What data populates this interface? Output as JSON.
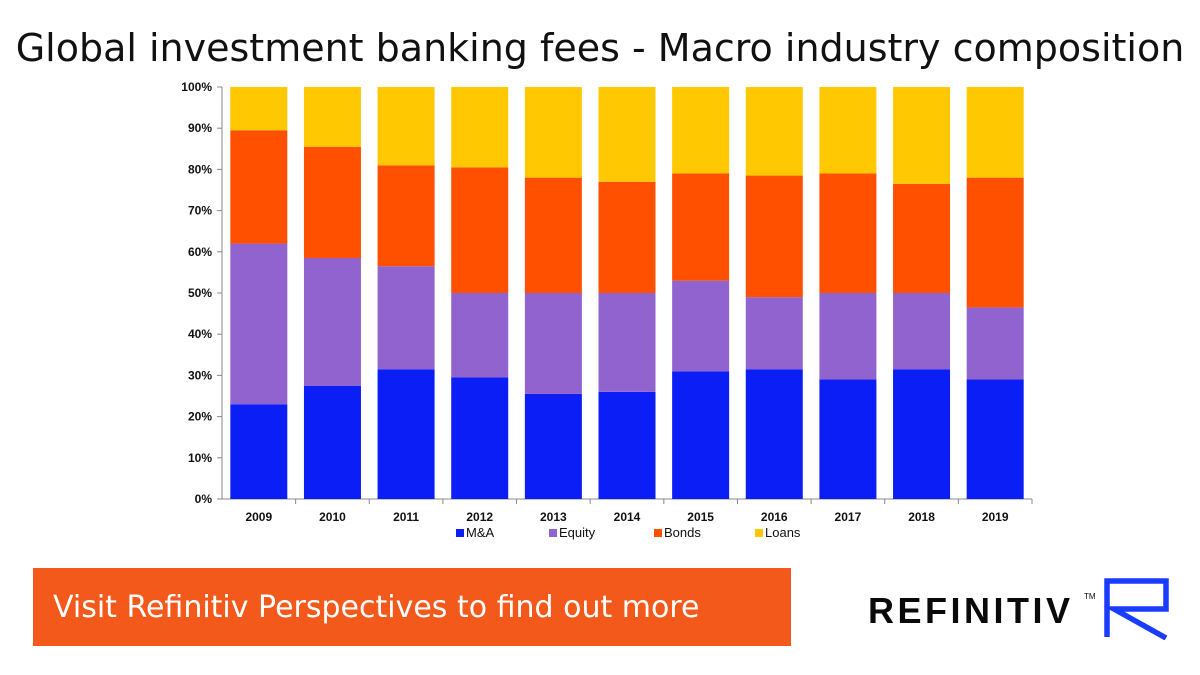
{
  "page": {
    "title": "Global investment banking fees - Macro industry composition",
    "cta_label": "Visit Refinitiv Perspectives to find out more",
    "brand": {
      "name": "REFINITIV",
      "tm": "TM",
      "logo_icon": "refinitiv-r-logo-icon",
      "logo_color": "#1a3cff"
    },
    "cta_color": "#f2591b"
  },
  "chart_data": {
    "type": "bar",
    "stacked": true,
    "categories": [
      "2009",
      "2010",
      "2011",
      "2012",
      "2013",
      "2014",
      "2015",
      "2016",
      "2017",
      "2018",
      "2019"
    ],
    "series": [
      {
        "name": "M&A",
        "color": "#0a1ef5",
        "values": [
          23,
          27.5,
          31.5,
          29.5,
          25.5,
          26,
          31,
          31.5,
          29,
          31.5,
          29
        ]
      },
      {
        "name": "Equity",
        "color": "#9063cf",
        "values": [
          39,
          31,
          25,
          20.5,
          24.5,
          24,
          22,
          17.5,
          21,
          18.5,
          17.5
        ]
      },
      {
        "name": "Bonds",
        "color": "#ff5000",
        "values": [
          27.5,
          27,
          24.5,
          30.5,
          28,
          27,
          26,
          29.5,
          29,
          26.5,
          31.5
        ]
      },
      {
        "name": "Loans",
        "color": "#ffc800",
        "values": [
          10.5,
          14.5,
          19,
          19.5,
          22,
          23,
          21,
          21.5,
          21,
          23.5,
          22
        ]
      }
    ],
    "ylim": [
      0,
      100
    ],
    "yticks": [
      "0%",
      "10%",
      "20%",
      "30%",
      "40%",
      "50%",
      "60%",
      "70%",
      "80%",
      "90%",
      "100%"
    ],
    "grid": false,
    "legend_position": "bottom"
  }
}
